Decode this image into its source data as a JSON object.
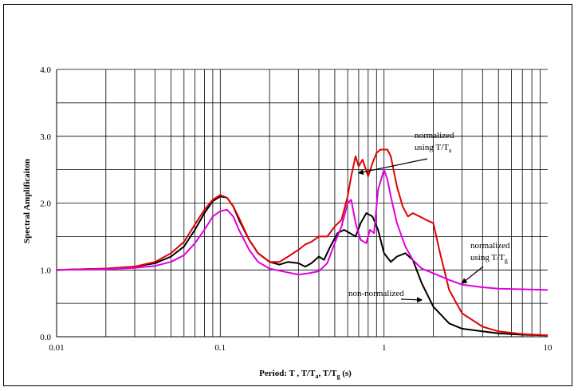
{
  "chart_data": {
    "type": "line",
    "x_scale": "log",
    "xlim": [
      0.01,
      10
    ],
    "ylim": [
      0.0,
      4.0
    ],
    "grid": true,
    "xlabel": {
      "main": "Period: T , T/T",
      "sub1": "a",
      "mid": ", T/T",
      "sub2": "g",
      "end": " (s)"
    },
    "ylabel": "Spectral Amplificaiton",
    "x_tick_labels": [
      "0.01",
      "0.1",
      "1",
      "10"
    ],
    "x_tick_values": [
      0.01,
      0.1,
      1,
      10
    ],
    "y_tick_labels": [
      "0.0",
      "1.0",
      "2.0",
      "3.0",
      "4.0"
    ],
    "y_tick_values": [
      0,
      1,
      2,
      3,
      4
    ],
    "annotations": [
      {
        "id": "normalized-a",
        "lines": [
          "normalized",
          "using T/T"
        ],
        "sub": "a",
        "target": [
          0.7,
          2.45
        ]
      },
      {
        "id": "normalized-g",
        "lines": [
          "normalized",
          "using T/T"
        ],
        "sub": "g",
        "target": [
          3.0,
          0.8
        ]
      },
      {
        "id": "non-normalized",
        "lines": [
          "non-normalized"
        ],
        "sub": "",
        "target": [
          1.7,
          0.55
        ]
      }
    ],
    "series": [
      {
        "key": "non-normalized",
        "color": "#000000",
        "points": [
          [
            0.01,
            1.0
          ],
          [
            0.02,
            1.02
          ],
          [
            0.03,
            1.05
          ],
          [
            0.04,
            1.1
          ],
          [
            0.05,
            1.2
          ],
          [
            0.06,
            1.35
          ],
          [
            0.07,
            1.6
          ],
          [
            0.08,
            1.85
          ],
          [
            0.09,
            2.03
          ],
          [
            0.1,
            2.1
          ],
          [
            0.11,
            2.08
          ],
          [
            0.12,
            1.95
          ],
          [
            0.13,
            1.75
          ],
          [
            0.15,
            1.45
          ],
          [
            0.17,
            1.25
          ],
          [
            0.2,
            1.12
          ],
          [
            0.23,
            1.08
          ],
          [
            0.26,
            1.12
          ],
          [
            0.3,
            1.1
          ],
          [
            0.33,
            1.05
          ],
          [
            0.36,
            1.1
          ],
          [
            0.4,
            1.2
          ],
          [
            0.43,
            1.15
          ],
          [
            0.47,
            1.35
          ],
          [
            0.52,
            1.55
          ],
          [
            0.57,
            1.6
          ],
          [
            0.62,
            1.55
          ],
          [
            0.67,
            1.5
          ],
          [
            0.72,
            1.7
          ],
          [
            0.78,
            1.85
          ],
          [
            0.85,
            1.8
          ],
          [
            0.92,
            1.6
          ],
          [
            1.0,
            1.25
          ],
          [
            1.1,
            1.12
          ],
          [
            1.2,
            1.2
          ],
          [
            1.35,
            1.25
          ],
          [
            1.5,
            1.15
          ],
          [
            1.7,
            0.8
          ],
          [
            2.0,
            0.45
          ],
          [
            2.5,
            0.2
          ],
          [
            3.0,
            0.12
          ],
          [
            4.0,
            0.08
          ],
          [
            5.0,
            0.05
          ],
          [
            7.0,
            0.03
          ],
          [
            10.0,
            0.02
          ]
        ]
      },
      {
        "key": "normalized-a",
        "color": "#e00000",
        "points": [
          [
            0.01,
            1.0
          ],
          [
            0.02,
            1.02
          ],
          [
            0.03,
            1.05
          ],
          [
            0.04,
            1.12
          ],
          [
            0.05,
            1.25
          ],
          [
            0.06,
            1.42
          ],
          [
            0.07,
            1.68
          ],
          [
            0.08,
            1.9
          ],
          [
            0.09,
            2.05
          ],
          [
            0.1,
            2.12
          ],
          [
            0.11,
            2.08
          ],
          [
            0.12,
            1.95
          ],
          [
            0.13,
            1.78
          ],
          [
            0.15,
            1.45
          ],
          [
            0.17,
            1.25
          ],
          [
            0.2,
            1.12
          ],
          [
            0.23,
            1.12
          ],
          [
            0.26,
            1.2
          ],
          [
            0.3,
            1.3
          ],
          [
            0.33,
            1.38
          ],
          [
            0.36,
            1.42
          ],
          [
            0.4,
            1.5
          ],
          [
            0.45,
            1.5
          ],
          [
            0.5,
            1.65
          ],
          [
            0.55,
            1.75
          ],
          [
            0.6,
            2.1
          ],
          [
            0.63,
            2.4
          ],
          [
            0.67,
            2.7
          ],
          [
            0.7,
            2.55
          ],
          [
            0.74,
            2.65
          ],
          [
            0.8,
            2.4
          ],
          [
            0.85,
            2.6
          ],
          [
            0.9,
            2.75
          ],
          [
            0.95,
            2.8
          ],
          [
            1.05,
            2.8
          ],
          [
            1.1,
            2.7
          ],
          [
            1.2,
            2.25
          ],
          [
            1.3,
            1.95
          ],
          [
            1.4,
            1.8
          ],
          [
            1.5,
            1.85
          ],
          [
            1.65,
            1.8
          ],
          [
            1.8,
            1.75
          ],
          [
            2.0,
            1.7
          ],
          [
            2.2,
            1.25
          ],
          [
            2.5,
            0.7
          ],
          [
            3.0,
            0.35
          ],
          [
            4.0,
            0.15
          ],
          [
            5.0,
            0.08
          ],
          [
            7.0,
            0.04
          ],
          [
            10.0,
            0.02
          ]
        ]
      },
      {
        "key": "normalized-g",
        "color": "#e000e0",
        "points": [
          [
            0.01,
            1.0
          ],
          [
            0.02,
            1.01
          ],
          [
            0.03,
            1.03
          ],
          [
            0.04,
            1.06
          ],
          [
            0.05,
            1.12
          ],
          [
            0.06,
            1.22
          ],
          [
            0.07,
            1.4
          ],
          [
            0.08,
            1.6
          ],
          [
            0.09,
            1.8
          ],
          [
            0.1,
            1.88
          ],
          [
            0.11,
            1.9
          ],
          [
            0.12,
            1.8
          ],
          [
            0.13,
            1.6
          ],
          [
            0.15,
            1.3
          ],
          [
            0.17,
            1.12
          ],
          [
            0.2,
            1.02
          ],
          [
            0.25,
            0.97
          ],
          [
            0.3,
            0.93
          ],
          [
            0.35,
            0.95
          ],
          [
            0.4,
            0.98
          ],
          [
            0.45,
            1.1
          ],
          [
            0.5,
            1.4
          ],
          [
            0.55,
            1.65
          ],
          [
            0.6,
            2.0
          ],
          [
            0.63,
            2.05
          ],
          [
            0.67,
            1.7
          ],
          [
            0.72,
            1.45
          ],
          [
            0.78,
            1.4
          ],
          [
            0.82,
            1.6
          ],
          [
            0.87,
            1.55
          ],
          [
            0.92,
            2.2
          ],
          [
            1.0,
            2.5
          ],
          [
            1.05,
            2.35
          ],
          [
            1.1,
            2.1
          ],
          [
            1.2,
            1.7
          ],
          [
            1.35,
            1.35
          ],
          [
            1.5,
            1.15
          ],
          [
            1.7,
            1.02
          ],
          [
            2.0,
            0.95
          ],
          [
            2.5,
            0.85
          ],
          [
            3.0,
            0.78
          ],
          [
            4.0,
            0.74
          ],
          [
            5.0,
            0.72
          ],
          [
            7.0,
            0.71
          ],
          [
            10.0,
            0.7
          ]
        ]
      }
    ]
  }
}
